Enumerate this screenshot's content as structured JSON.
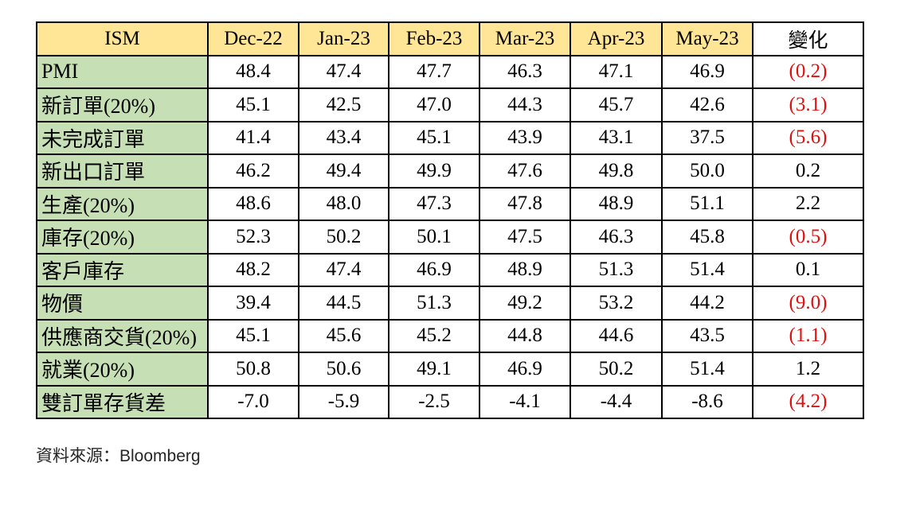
{
  "colors": {
    "header_bg": "#FFE596",
    "row_label_bg": "#C7DFB5",
    "cell_bg": "#FFFFFF",
    "border": "#000000",
    "negative_text": "#E01010",
    "text": "#000000"
  },
  "table": {
    "columns": [
      "ISM",
      "Dec-22",
      "Jan-23",
      "Feb-23",
      "Mar-23",
      "Apr-23",
      "May-23",
      "變化"
    ],
    "rows": [
      {
        "label": "PMI",
        "values": [
          "48.4",
          "47.4",
          "47.7",
          "46.3",
          "47.1",
          "46.9"
        ],
        "change": "(0.2)",
        "negative": true
      },
      {
        "label": "新訂單(20%)",
        "values": [
          "45.1",
          "42.5",
          "47.0",
          "44.3",
          "45.7",
          "42.6"
        ],
        "change": "(3.1)",
        "negative": true
      },
      {
        "label": "未完成訂單",
        "values": [
          "41.4",
          "43.4",
          "45.1",
          "43.9",
          "43.1",
          "37.5"
        ],
        "change": "(5.6)",
        "negative": true
      },
      {
        "label": "新出口訂單",
        "values": [
          "46.2",
          "49.4",
          "49.9",
          "47.6",
          "49.8",
          "50.0"
        ],
        "change": "0.2",
        "negative": false
      },
      {
        "label": "生產(20%)",
        "values": [
          "48.6",
          "48.0",
          "47.3",
          "47.8",
          "48.9",
          "51.1"
        ],
        "change": "2.2",
        "negative": false
      },
      {
        "label": "庫存(20%)",
        "values": [
          "52.3",
          "50.2",
          "50.1",
          "47.5",
          "46.3",
          "45.8"
        ],
        "change": "(0.5)",
        "negative": true
      },
      {
        "label": "客戶庫存",
        "values": [
          "48.2",
          "47.4",
          "46.9",
          "48.9",
          "51.3",
          "51.4"
        ],
        "change": "0.1",
        "negative": false
      },
      {
        "label": "物價",
        "values": [
          "39.4",
          "44.5",
          "51.3",
          "49.2",
          "53.2",
          "44.2"
        ],
        "change": "(9.0)",
        "negative": true
      },
      {
        "label": "供應商交貨(20%)",
        "values": [
          "45.1",
          "45.6",
          "45.2",
          "44.8",
          "44.6",
          "43.5"
        ],
        "change": "(1.1)",
        "negative": true
      },
      {
        "label": "就業(20%)",
        "values": [
          "50.8",
          "50.6",
          "49.1",
          "46.9",
          "50.2",
          "51.4"
        ],
        "change": "1.2",
        "negative": false
      },
      {
        "label": "雙訂單存貨差",
        "values": [
          "-7.0",
          "-5.9",
          "-2.5",
          "-4.1",
          "-4.4",
          "-8.6"
        ],
        "change": "(4.2)",
        "negative": true
      }
    ]
  },
  "footer": {
    "source": "資料來源：Bloomberg"
  },
  "chart_data": {
    "type": "table",
    "title": "ISM",
    "categories": [
      "Dec-22",
      "Jan-23",
      "Feb-23",
      "Mar-23",
      "Apr-23",
      "May-23"
    ],
    "change_column_label": "變化",
    "series": [
      {
        "name": "PMI",
        "values": [
          48.4,
          47.4,
          47.7,
          46.3,
          47.1,
          46.9
        ],
        "change": -0.2
      },
      {
        "name": "新訂單(20%)",
        "values": [
          45.1,
          42.5,
          47.0,
          44.3,
          45.7,
          42.6
        ],
        "change": -3.1
      },
      {
        "name": "未完成訂單",
        "values": [
          41.4,
          43.4,
          45.1,
          43.9,
          43.1,
          37.5
        ],
        "change": -5.6
      },
      {
        "name": "新出口訂單",
        "values": [
          46.2,
          49.4,
          49.9,
          47.6,
          49.8,
          50.0
        ],
        "change": 0.2
      },
      {
        "name": "生產(20%)",
        "values": [
          48.6,
          48.0,
          47.3,
          47.8,
          48.9,
          51.1
        ],
        "change": 2.2
      },
      {
        "name": "庫存(20%)",
        "values": [
          52.3,
          50.2,
          50.1,
          47.5,
          46.3,
          45.8
        ],
        "change": -0.5
      },
      {
        "name": "客戶庫存",
        "values": [
          48.2,
          47.4,
          46.9,
          48.9,
          51.3,
          51.4
        ],
        "change": 0.1
      },
      {
        "name": "物價",
        "values": [
          39.4,
          44.5,
          51.3,
          49.2,
          53.2,
          44.2
        ],
        "change": -9.0
      },
      {
        "name": "供應商交貨(20%)",
        "values": [
          45.1,
          45.6,
          45.2,
          44.8,
          44.6,
          43.5
        ],
        "change": -1.1
      },
      {
        "name": "就業(20%)",
        "values": [
          50.8,
          50.6,
          49.1,
          46.9,
          50.2,
          51.4
        ],
        "change": 1.2
      },
      {
        "name": "雙訂單存貨差",
        "values": [
          -7.0,
          -5.9,
          -2.5,
          -4.1,
          -4.4,
          -8.6
        ],
        "change": -4.2
      }
    ],
    "notes": "Parenthesized red values in 變化 column denote negative month-over-month changes",
    "source": "Bloomberg"
  }
}
